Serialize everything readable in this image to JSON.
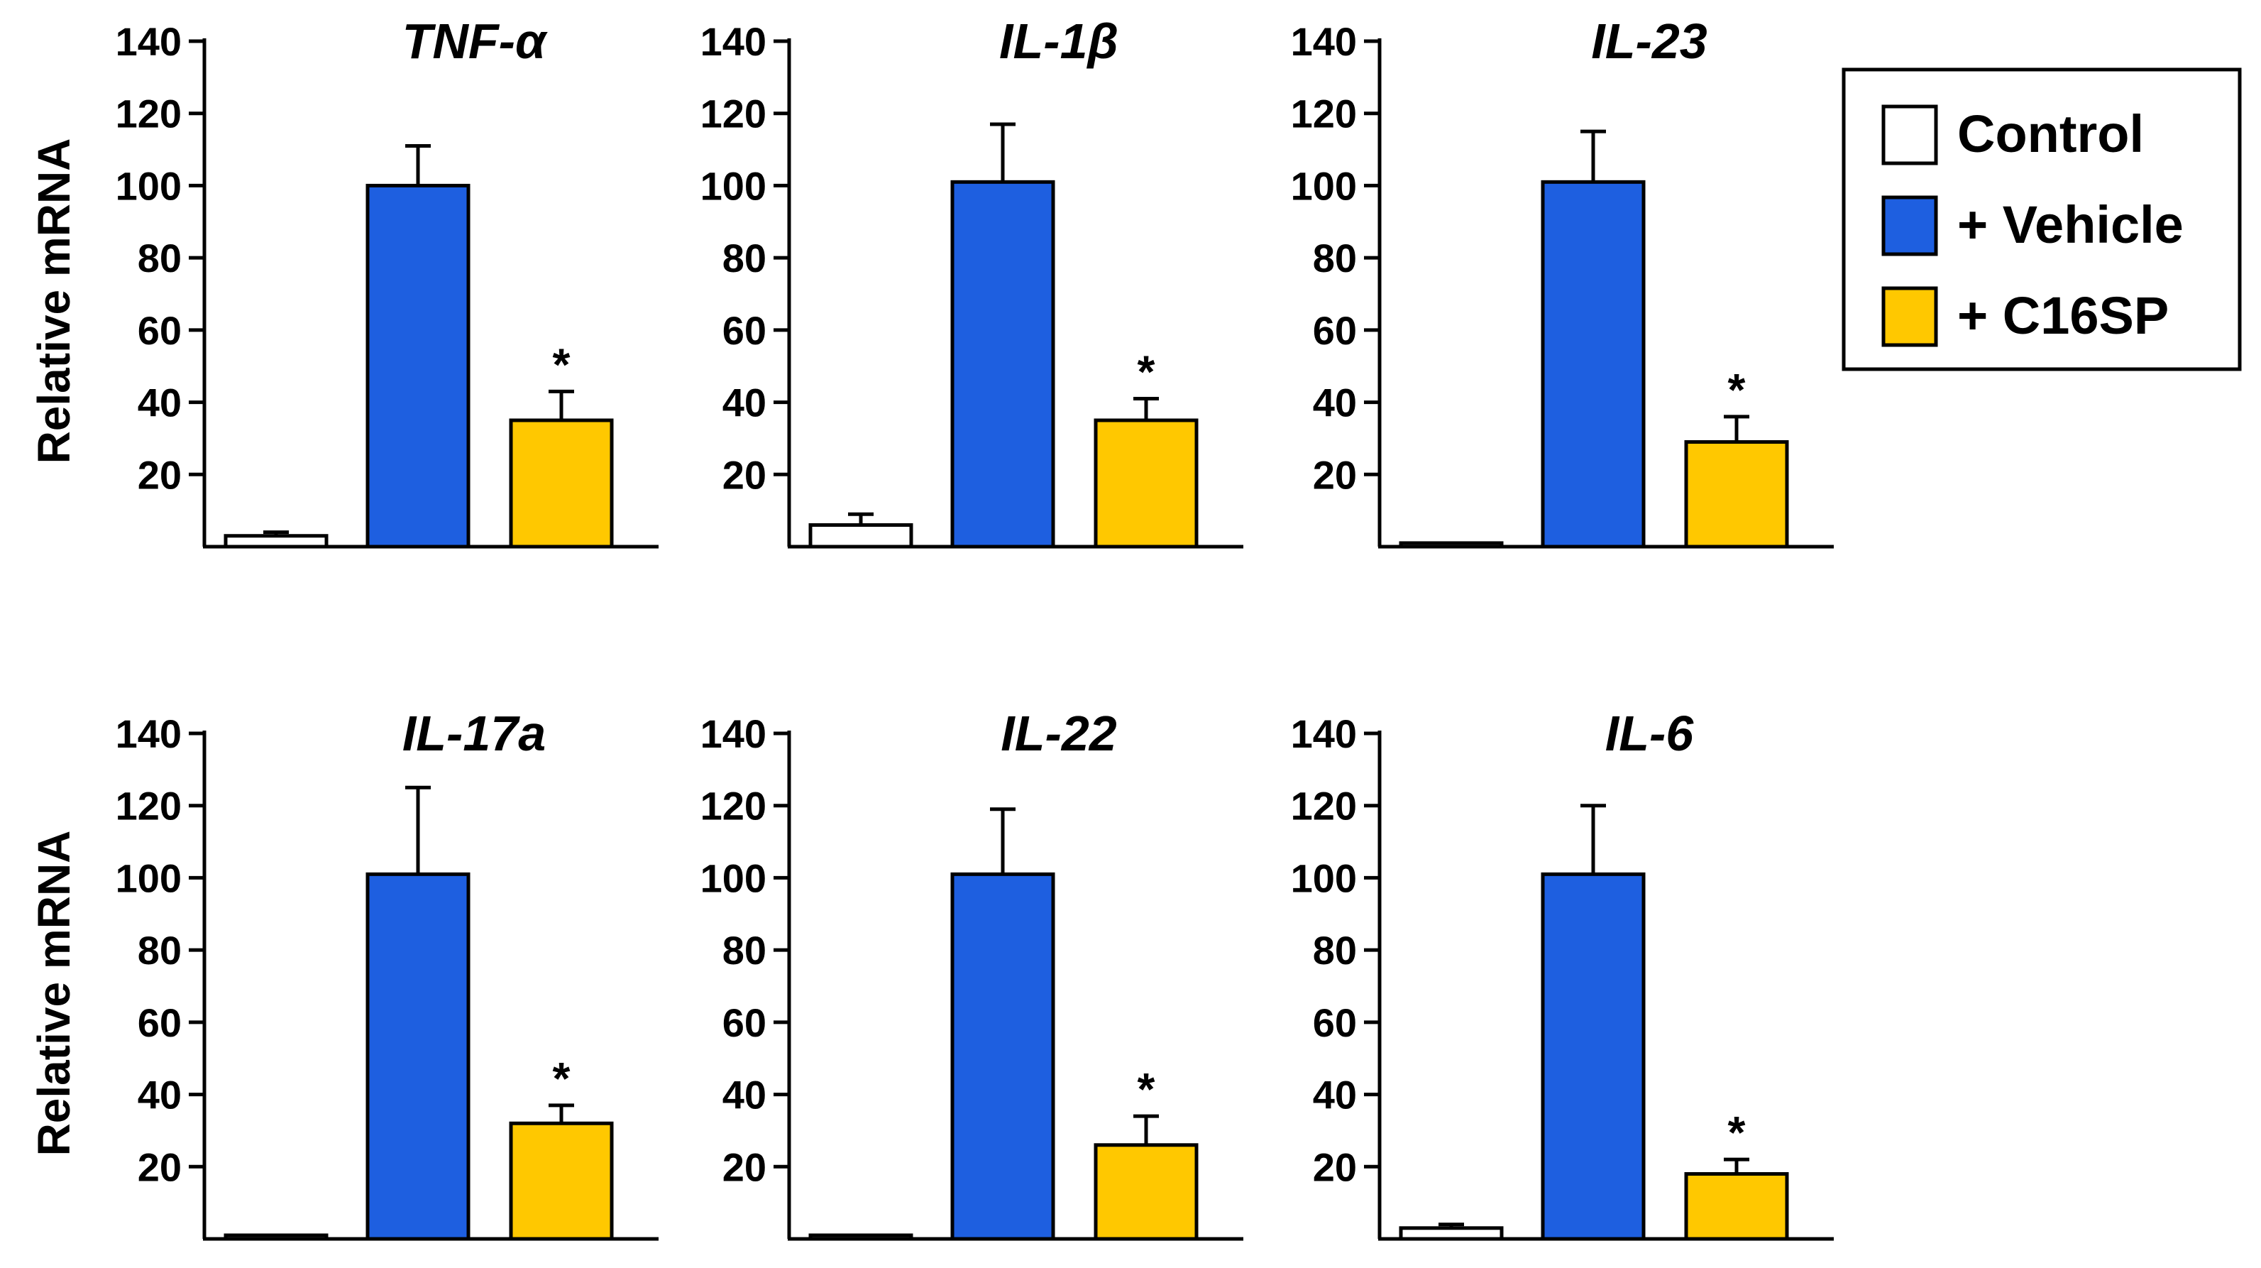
{
  "chart_data": {
    "type": "bar",
    "layout": "2x3 grid of bar charts",
    "ylabel": "Relative mRNA",
    "ylim": [
      0,
      140
    ],
    "yticks": [
      20,
      40,
      60,
      80,
      100,
      120,
      140
    ],
    "categories": [
      "Control",
      "+ Vehicle",
      "+ C16SP"
    ],
    "legend": {
      "placement": "top-right",
      "entries": [
        {
          "label": "Control",
          "color": "#ffffff"
        },
        {
          "label": "+ Vehicle",
          "color": "#1e5fe0"
        },
        {
          "label": "+ C16SP",
          "color": "#ffc800"
        }
      ]
    },
    "significance_marker": "*",
    "panels": [
      {
        "title": "TNF-α",
        "values": [
          3,
          100,
          35
        ],
        "errors": [
          1,
          11,
          8
        ],
        "significant": [
          false,
          false,
          true
        ]
      },
      {
        "title": "IL-1β",
        "values": [
          6,
          101,
          35
        ],
        "errors": [
          3,
          16,
          6
        ],
        "significant": [
          false,
          false,
          true
        ]
      },
      {
        "title": "IL-23",
        "values": [
          1,
          101,
          29
        ],
        "errors": [
          0,
          14,
          7
        ],
        "significant": [
          false,
          false,
          true
        ]
      },
      {
        "title": "IL-17a",
        "values": [
          1,
          101,
          32
        ],
        "errors": [
          0,
          24,
          5
        ],
        "significant": [
          false,
          false,
          true
        ]
      },
      {
        "title": "IL-22",
        "values": [
          1,
          101,
          26
        ],
        "errors": [
          0,
          18,
          8
        ],
        "significant": [
          false,
          false,
          true
        ]
      },
      {
        "title": "IL-6",
        "values": [
          3,
          101,
          18
        ],
        "errors": [
          1,
          19,
          4
        ],
        "significant": [
          false,
          false,
          true
        ]
      }
    ]
  }
}
